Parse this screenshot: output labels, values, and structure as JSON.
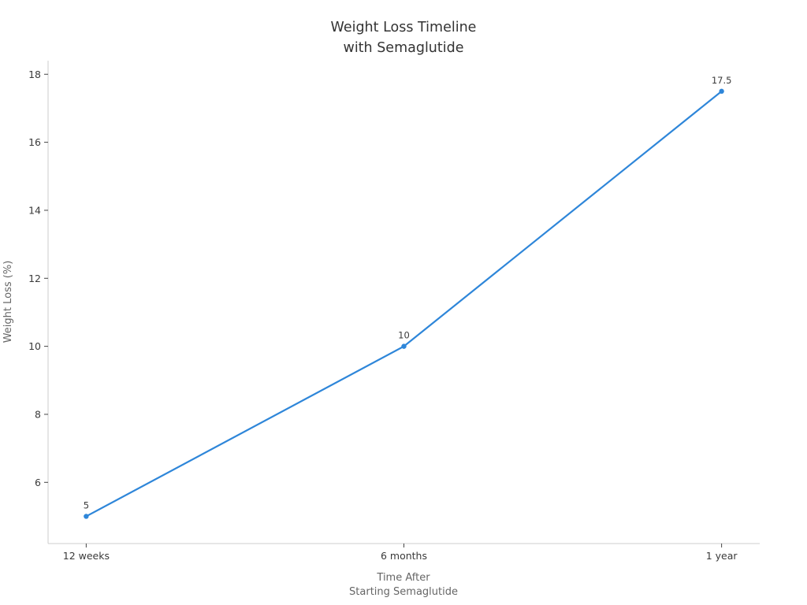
{
  "chart_data": {
    "type": "line",
    "title_lines": [
      "Weight Loss Timeline",
      "with Semaglutide"
    ],
    "title": "Weight Loss Timeline with Semaglutide",
    "categories": [
      "12 weeks",
      "6 months",
      "1 year"
    ],
    "values": [
      5,
      10,
      17.5
    ],
    "point_labels": [
      "5",
      "10",
      "17.5"
    ],
    "xlabel_lines": [
      "Time After",
      "Starting Semaglutide"
    ],
    "xlabel": "Time After Starting Semaglutide",
    "ylabel": "Weight Loss (%)",
    "yticks": [
      "6",
      "8",
      "10",
      "12",
      "14",
      "16",
      "18"
    ],
    "ylim": [
      4.2,
      18.4
    ],
    "grid": false,
    "legend": "none",
    "line_color": "#2e86d9",
    "marker": "circle",
    "title_color": "#333333",
    "tick_text_color": "#3a3a3a",
    "axis_label_color": "#666666",
    "spine_color": "#cccccc",
    "tick_mark_color": "#444444",
    "background_color": "#ffffff"
  }
}
